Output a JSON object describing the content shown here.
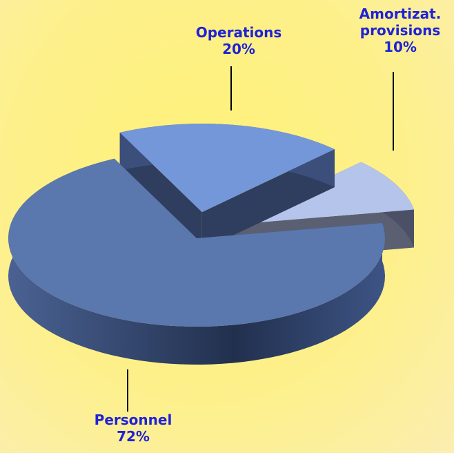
{
  "chart_data": {
    "type": "pie",
    "categories": [
      "Personnel",
      "Operations",
      "Amortizat. provisions"
    ],
    "values": [
      72,
      20,
      10
    ],
    "value_labels": [
      "72%",
      "20%",
      "10%"
    ],
    "colors": [
      "#5a77ae",
      "#7397d8",
      "#b4c4ea"
    ],
    "legend": false
  }
}
